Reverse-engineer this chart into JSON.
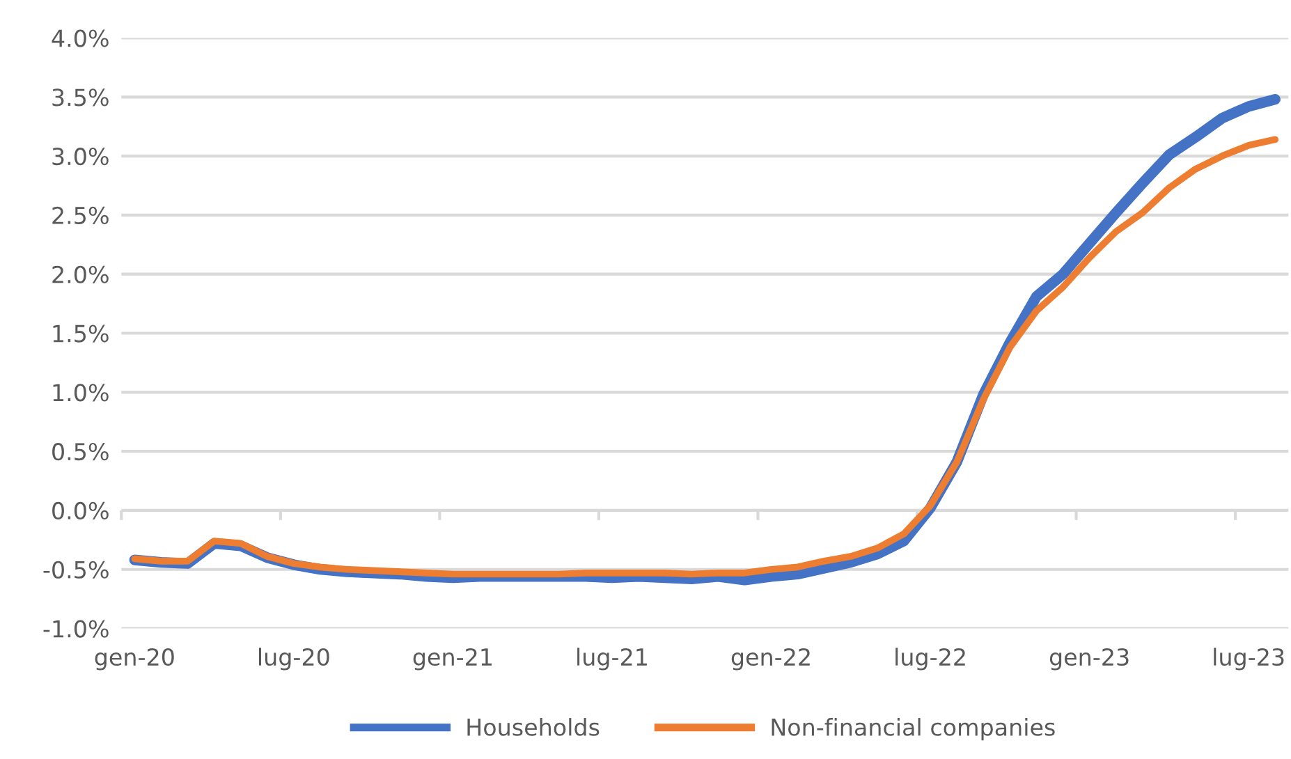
{
  "chart_data": {
    "type": "line",
    "categories": [
      "gen-20",
      null,
      null,
      null,
      null,
      null,
      "lug-20",
      null,
      null,
      null,
      null,
      null,
      "gen-21",
      null,
      null,
      null,
      null,
      null,
      "lug-21",
      null,
      null,
      null,
      null,
      null,
      "gen-22",
      null,
      null,
      null,
      null,
      null,
      "lug-22",
      null,
      null,
      null,
      null,
      null,
      "gen-23",
      null,
      null,
      null,
      null,
      null,
      "lug-23",
      null
    ],
    "series": [
      {
        "name": "Households",
        "color": "#4472c4",
        "values": [
          -0.42,
          -0.44,
          -0.45,
          -0.28,
          -0.3,
          -0.4,
          -0.46,
          -0.5,
          -0.52,
          -0.53,
          -0.54,
          -0.56,
          -0.57,
          -0.56,
          -0.56,
          -0.56,
          -0.56,
          -0.56,
          -0.57,
          -0.56,
          -0.57,
          -0.58,
          -0.56,
          -0.59,
          -0.56,
          -0.54,
          -0.49,
          -0.44,
          -0.37,
          -0.26,
          0.02,
          0.41,
          0.98,
          1.42,
          1.81,
          2.0,
          2.26,
          2.52,
          2.77,
          3.01,
          3.16,
          3.32,
          3.42,
          3.48
        ]
      },
      {
        "name": "Non-financial companies",
        "color": "#ed7d31",
        "values": [
          -0.41,
          -0.43,
          -0.43,
          -0.26,
          -0.28,
          -0.39,
          -0.45,
          -0.48,
          -0.5,
          -0.51,
          -0.52,
          -0.53,
          -0.54,
          -0.54,
          -0.54,
          -0.54,
          -0.54,
          -0.53,
          -0.53,
          -0.53,
          -0.53,
          -0.54,
          -0.53,
          -0.53,
          -0.5,
          -0.48,
          -0.43,
          -0.39,
          -0.32,
          -0.2,
          0.04,
          0.41,
          0.94,
          1.38,
          1.69,
          1.89,
          2.14,
          2.36,
          2.52,
          2.73,
          2.89,
          3.0,
          3.09,
          3.14
        ]
      }
    ],
    "ylim": [
      -1.0,
      4.0
    ],
    "yticks": [
      {
        "value": -1.0,
        "label": "-1.0%"
      },
      {
        "value": -0.5,
        "label": "-0.5%"
      },
      {
        "value": 0.0,
        "label": "0.0%"
      },
      {
        "value": 0.5,
        "label": "0.5%"
      },
      {
        "value": 1.0,
        "label": "1.0%"
      },
      {
        "value": 1.5,
        "label": "1.5%"
      },
      {
        "value": 2.0,
        "label": "2.0%"
      },
      {
        "value": 2.5,
        "label": "2.5%"
      },
      {
        "value": 3.0,
        "label": "3.0%"
      },
      {
        "value": 3.5,
        "label": "3.5%"
      },
      {
        "value": 4.0,
        "label": "4.0%"
      }
    ],
    "grid": "y",
    "legend": "bottom",
    "marker": "none",
    "line_style": "solid"
  }
}
